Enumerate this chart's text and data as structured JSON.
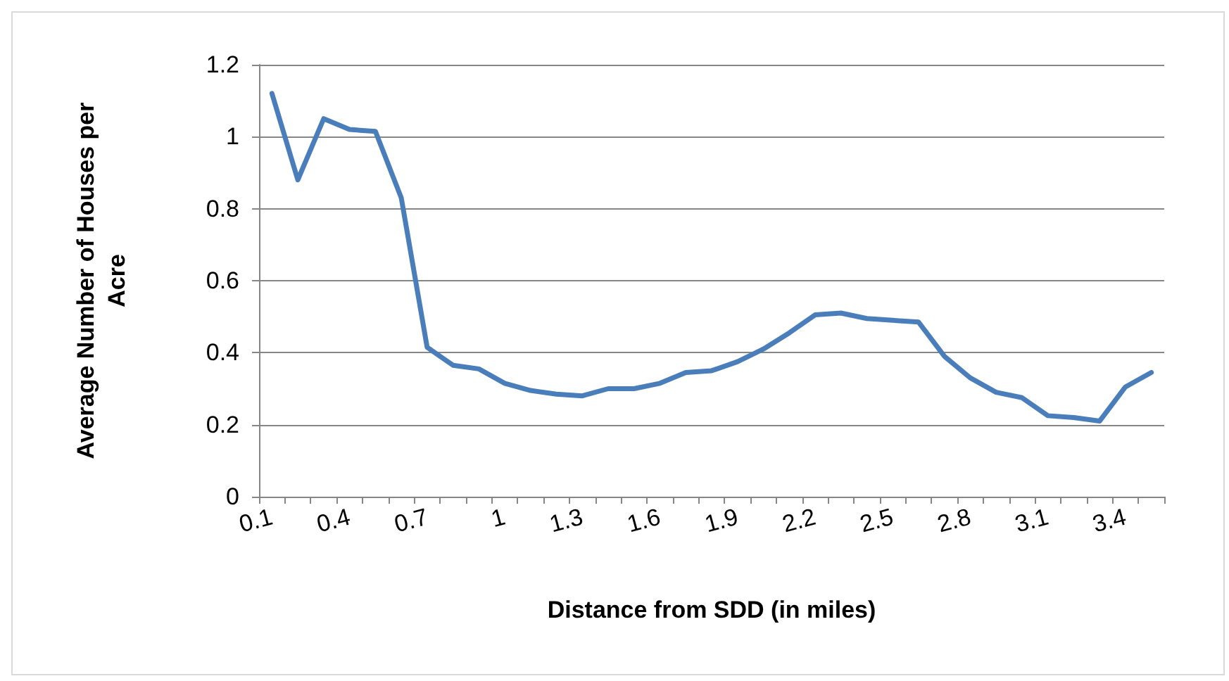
{
  "chart_data": {
    "type": "line",
    "xlabel": "Distance from SDD (in miles)",
    "ylabel": "Average Number of Houses per Acre",
    "categories": [
      "0.1",
      null,
      null,
      "0.4",
      null,
      null,
      "0.7",
      null,
      null,
      "1",
      null,
      null,
      "1.3",
      null,
      null,
      "1.6",
      null,
      null,
      "1.9",
      null,
      null,
      "2.2",
      null,
      null,
      "2.5",
      null,
      null,
      "2.8",
      null,
      null,
      "3.1",
      null,
      null,
      "3.4",
      null
    ],
    "series": [
      {
        "color": "#4a7ebb",
        "values": [
          1.12,
          0.88,
          1.05,
          1.02,
          1.015,
          0.83,
          0.415,
          0.365,
          0.355,
          0.315,
          0.295,
          0.285,
          0.28,
          0.3,
          0.3,
          0.315,
          0.345,
          0.35,
          0.375,
          0.41,
          0.455,
          0.505,
          0.51,
          0.495,
          0.49,
          0.485,
          0.39,
          0.33,
          0.29,
          0.275,
          0.225,
          0.22,
          0.21,
          0.305,
          0.345
        ]
      }
    ],
    "ylim": [
      0,
      1.2
    ],
    "yticks": [
      0,
      0.2,
      0.4,
      0.6,
      0.8,
      1,
      1.2
    ],
    "grid": "y",
    "marker": "none",
    "line_style": "solid"
  }
}
